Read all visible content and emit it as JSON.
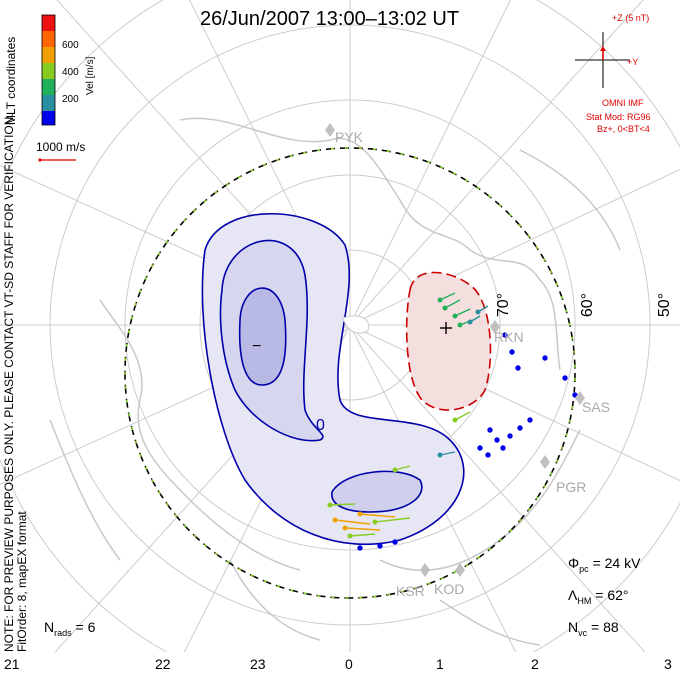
{
  "title": "26/Jun/2007  13:00–13:02  UT",
  "colorbar": {
    "label": "Vel [m/s]",
    "ticks": [
      "600",
      "400",
      "200"
    ],
    "colors": [
      "#0000ee",
      "#2a8fa0",
      "#22b05a",
      "#88cc22",
      "#f0a000",
      "#ff6600",
      "#ee1111"
    ]
  },
  "scale": {
    "label": "1000 m/s",
    "color": "#e00000"
  },
  "side_text": {
    "coords": "MLT coordinates",
    "note1": "NOTE: FOR PREVIEW PURPOSES ONLY. PLEASE CONTACT VT-SD STAFF FOR VERIFICATION.",
    "note2": "FitOrder: 8, mapEX format"
  },
  "imf": {
    "z_label": "+Z (5 nT)",
    "y_label": "+Y",
    "title": "OMNI IMF",
    "model": "Stat Mod: RG96",
    "cond": "Bz+, 0<BT<4",
    "color": "#e00000"
  },
  "stats": {
    "phi_pc": "Φ",
    "phi_sub": "pc",
    "phi_val": "= 24 kV",
    "lambda": "Λ",
    "lambda_sub": "HM",
    "lambda_val": "= 62°",
    "nvc": "N",
    "nvc_sub": "vc",
    "nvc_val": "= 88",
    "nrads": "N",
    "nrads_sub": "rads",
    "nrads_val": "= 6"
  },
  "x_ticks": [
    "21",
    "22",
    "23",
    "0",
    "1",
    "2",
    "3"
  ],
  "lat_labels": [
    "70°",
    "60°",
    "50°"
  ],
  "stations": [
    "PYK",
    "RKN",
    "SAS",
    "PGR",
    "KSR",
    "KOD"
  ],
  "contour_labels": [
    "−",
    "0",
    "+"
  ]
}
